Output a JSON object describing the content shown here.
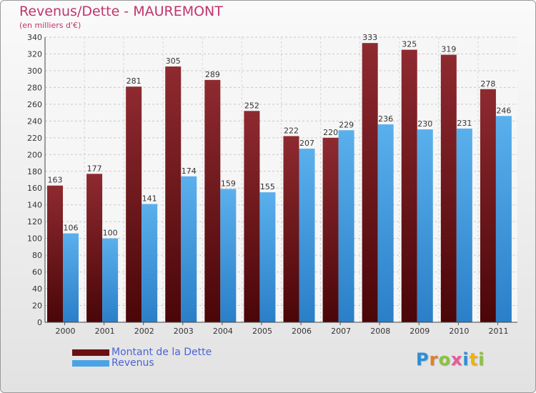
{
  "chart_data": {
    "type": "bar",
    "title": "Revenus/Dette - MAUREMONT",
    "subtitle": "(en milliers d'€)",
    "categories": [
      "2000",
      "2001",
      "2002",
      "2003",
      "2004",
      "2005",
      "2006",
      "2007",
      "2008",
      "2009",
      "2010",
      "2011"
    ],
    "series": [
      {
        "name": "Montant de la Dette",
        "color": "#7a1a1e",
        "values": [
          163,
          177,
          281,
          305,
          289,
          252,
          222,
          220,
          333,
          325,
          319,
          278
        ]
      },
      {
        "name": "Revenus",
        "color": "#4ba3e6",
        "values": [
          106,
          100,
          141,
          174,
          159,
          155,
          207,
          229,
          236,
          230,
          231,
          246
        ]
      }
    ],
    "yticks": [
      0,
      20,
      40,
      60,
      80,
      100,
      120,
      140,
      160,
      180,
      200,
      220,
      240,
      260,
      280,
      300,
      320,
      340
    ],
    "ylim": [
      0,
      340
    ],
    "grid": true,
    "legend_position": "bottom-left",
    "background": "#f2f2f2"
  },
  "brand": {
    "logo_letters": [
      {
        "ch": "P",
        "color": "#2b8fd8"
      },
      {
        "ch": "r",
        "color": "#e0802a"
      },
      {
        "ch": "o",
        "color": "#8ac43e"
      },
      {
        "ch": "x",
        "color": "#e85a9a"
      },
      {
        "ch": "i",
        "color": "#2b8fd8"
      },
      {
        "ch": "t",
        "color": "#f2b400"
      },
      {
        "ch": "i",
        "color": "#8ac43e"
      }
    ]
  }
}
